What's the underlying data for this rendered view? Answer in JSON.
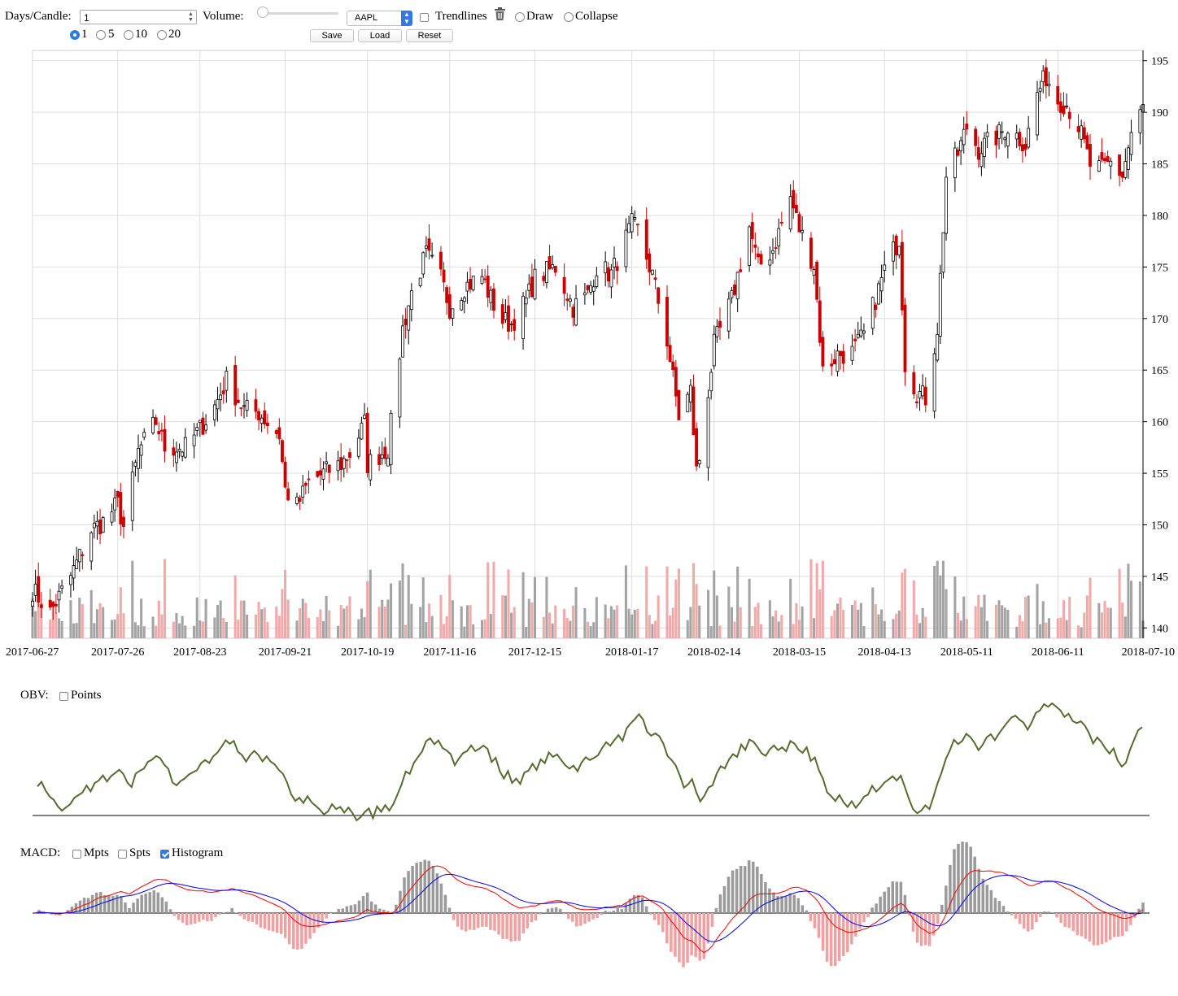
{
  "controls": {
    "days_label": "Days/Candle:",
    "days_value": "1",
    "volume_label": "Volume:",
    "volume_level": 0.0,
    "symbol": "AAPL",
    "trendlines_label": "Trendlines",
    "draw_label": "Draw",
    "collapse_label": "Collapse",
    "candle_options": [
      "1",
      "5",
      "10",
      "20"
    ],
    "candle_selected": "1",
    "save_label": "Save",
    "load_label": "Load",
    "reset_label": "Reset",
    "trendlines_checked": false
  },
  "obv": {
    "label": "OBV:",
    "points_label": "Points",
    "points_checked": false
  },
  "macd": {
    "label": "MACD:",
    "mpts_label": "Mpts",
    "mpts_checked": false,
    "spts_label": "Spts",
    "spts_checked": false,
    "histogram_label": "Histogram",
    "histogram_checked": true
  },
  "colors": {
    "up": "#000000",
    "down": "#cc0000",
    "vol_up": "#9a9a9a",
    "vol_down": "#f0a0a0",
    "obv": "#556b2f",
    "macd": "#ff0000",
    "signal": "#0000ff",
    "grid": "#dddddd"
  },
  "chart_data": {
    "type": "candlestick",
    "title": "",
    "ylim": [
      139,
      196
    ],
    "y_ticks": [
      140,
      145,
      150,
      155,
      160,
      165,
      170,
      175,
      180,
      185,
      190,
      195
    ],
    "x_tick_labels": [
      "2017-06-27",
      "2017-07-26",
      "2017-08-23",
      "2017-09-21",
      "2017-10-19",
      "2017-11-16",
      "2017-12-15",
      "2018-01-17",
      "2018-02-14",
      "2018-03-15",
      "2018-04-13",
      "2018-05-11",
      "2018-06-11",
      "2018-07-10"
    ],
    "x_range": [
      "2017-06-27",
      "2018-07-10"
    ],
    "grid": true,
    "close_anchors": [
      [
        "2017-06-27",
        143.7
      ],
      [
        "2017-07-03",
        141.5
      ],
      [
        "2017-07-10",
        145.0
      ],
      [
        "2017-07-17",
        149.5
      ],
      [
        "2017-07-21",
        150.3
      ],
      [
        "2017-07-26",
        152.0
      ],
      [
        "2017-07-28",
        149.8
      ],
      [
        "2017-08-02",
        157.1
      ],
      [
        "2017-08-08",
        160.0
      ],
      [
        "2017-08-11",
        157.5
      ],
      [
        "2017-08-18",
        157.5
      ],
      [
        "2017-08-23",
        159.3
      ],
      [
        "2017-08-28",
        161.5
      ],
      [
        "2017-09-01",
        164.0
      ],
      [
        "2017-09-07",
        161.2
      ],
      [
        "2017-09-12",
        160.9
      ],
      [
        "2017-09-15",
        159.9
      ],
      [
        "2017-09-19",
        158.7
      ],
      [
        "2017-09-21",
        153.4
      ],
      [
        "2017-09-25",
        151.8
      ],
      [
        "2017-09-29",
        154.1
      ],
      [
        "2017-10-04",
        155.0
      ],
      [
        "2017-10-10",
        155.9
      ],
      [
        "2017-10-13",
        156.9
      ],
      [
        "2017-10-18",
        159.8
      ],
      [
        "2017-10-19",
        155.9
      ],
      [
        "2017-10-26",
        157.4
      ],
      [
        "2017-10-31",
        169.0
      ],
      [
        "2017-11-03",
        172.5
      ],
      [
        "2017-11-08",
        176.2
      ],
      [
        "2017-11-13",
        173.9
      ],
      [
        "2017-11-16",
        171.1
      ],
      [
        "2017-11-21",
        173.1
      ],
      [
        "2017-11-27",
        174.1
      ],
      [
        "2017-11-30",
        171.9
      ],
      [
        "2017-12-04",
        169.8
      ],
      [
        "2017-12-07",
        169.5
      ],
      [
        "2017-12-12",
        171.7
      ],
      [
        "2017-12-15",
        173.9
      ],
      [
        "2017-12-19",
        174.5
      ],
      [
        "2017-12-22",
        175.0
      ],
      [
        "2017-12-28",
        171.1
      ],
      [
        "2018-01-02",
        172.3
      ],
      [
        "2018-01-05",
        175.0
      ],
      [
        "2018-01-10",
        174.3
      ],
      [
        "2018-01-17",
        179.1
      ],
      [
        "2018-01-19",
        178.5
      ],
      [
        "2018-01-24",
        174.2
      ],
      [
        "2018-01-29",
        167.9
      ],
      [
        "2018-02-02",
        160.5
      ],
      [
        "2018-02-06",
        163.0
      ],
      [
        "2018-02-08",
        155.2
      ],
      [
        "2018-02-09",
        156.4
      ],
      [
        "2018-02-14",
        167.4
      ],
      [
        "2018-02-20",
        171.8
      ],
      [
        "2018-02-26",
        178.9
      ],
      [
        "2018-03-01",
        175.0
      ],
      [
        "2018-03-06",
        176.7
      ],
      [
        "2018-03-12",
        181.7
      ],
      [
        "2018-03-15",
        178.7
      ],
      [
        "2018-03-20",
        175.2
      ],
      [
        "2018-03-23",
        164.9
      ],
      [
        "2018-03-28",
        166.5
      ],
      [
        "2018-04-02",
        166.7
      ],
      [
        "2018-04-06",
        168.4
      ],
      [
        "2018-04-11",
        172.8
      ],
      [
        "2018-04-13",
        174.7
      ],
      [
        "2018-04-18",
        177.8
      ],
      [
        "2018-04-20",
        165.7
      ],
      [
        "2018-04-24",
        162.9
      ],
      [
        "2018-04-27",
        162.3
      ],
      [
        "2018-05-01",
        169.1
      ],
      [
        "2018-05-04",
        183.8
      ],
      [
        "2018-05-08",
        186.0
      ],
      [
        "2018-05-11",
        188.6
      ],
      [
        "2018-05-15",
        186.4
      ],
      [
        "2018-05-21",
        187.6
      ],
      [
        "2018-05-25",
        188.6
      ],
      [
        "2018-05-31",
        186.9
      ],
      [
        "2018-06-04",
        191.8
      ],
      [
        "2018-06-07",
        193.5
      ],
      [
        "2018-06-11",
        191.2
      ],
      [
        "2018-06-14",
        190.8
      ],
      [
        "2018-06-18",
        188.7
      ],
      [
        "2018-06-22",
        184.9
      ],
      [
        "2018-06-26",
        184.4
      ],
      [
        "2018-06-29",
        185.1
      ],
      [
        "2018-07-03",
        183.9
      ],
      [
        "2018-07-06",
        187.9
      ],
      [
        "2018-07-10",
        190.4
      ]
    ],
    "volume_note": "",
    "obv": {
      "type": "line",
      "series": [
        {
          "name": "",
          "values": []
        }
      ]
    },
    "macd": {
      "type": "line+bar",
      "series": [
        {
          "name": "",
          "values": []
        },
        {
          "name": "",
          "values": []
        }
      ]
    }
  }
}
